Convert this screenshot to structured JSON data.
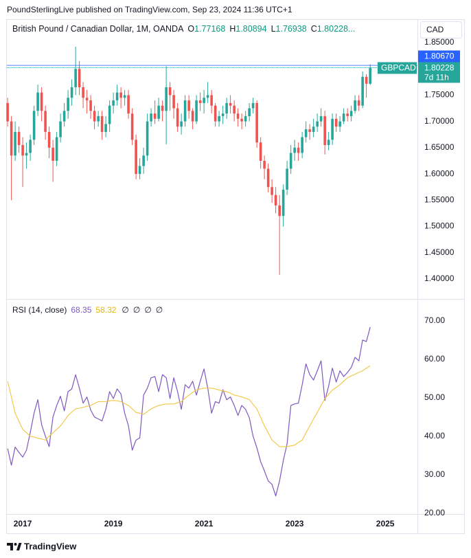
{
  "header": {
    "publisher": "PoundSterlingLive published on TradingView.com, Sep 23, 2024 11:36 UTC+1",
    "brand": "TradingView"
  },
  "chart_data": [
    {
      "type": "candlestick",
      "title": "British Pound / Canadian Dollar, 1M, OANDA",
      "ohlc_labels": [
        "O",
        "H",
        "L",
        "C"
      ],
      "ohlc_more": "...",
      "currency": "CAD",
      "symbol": "GBPCAD",
      "countdown": "7d 11h",
      "price_label": {
        "value": 1.8067,
        "label": "1.80670"
      },
      "price_label_color": "#2962ff",
      "up_color": "#26a69a",
      "down_color": "#ef5350",
      "xlim": [
        2016.65,
        2025.71
      ],
      "ylim": [
        1.362,
        1.8945
      ],
      "yticks": [
        {
          "value": 1.4,
          "label": "1.40000"
        },
        {
          "value": 1.45,
          "label": "1.45000"
        },
        {
          "value": 1.5,
          "label": "1.50000"
        },
        {
          "value": 1.55,
          "label": "1.55000"
        },
        {
          "value": 1.6,
          "label": "1.60000"
        },
        {
          "value": 1.65,
          "label": "1.65000"
        },
        {
          "value": 1.7,
          "label": "1.70000"
        },
        {
          "value": 1.75,
          "label": "1.75000"
        },
        {
          "value": 1.85,
          "label": "1.85000"
        }
      ],
      "grid": true,
      "x": [
        2016.667,
        2016.75,
        2016.833,
        2016.917,
        2017,
        2017.083,
        2017.167,
        2017.25,
        2017.333,
        2017.417,
        2017.5,
        2017.583,
        2017.667,
        2017.75,
        2017.833,
        2017.917,
        2018,
        2018.083,
        2018.167,
        2018.25,
        2018.333,
        2018.417,
        2018.5,
        2018.583,
        2018.667,
        2018.75,
        2018.833,
        2018.917,
        2019,
        2019.083,
        2019.167,
        2019.25,
        2019.333,
        2019.417,
        2019.5,
        2019.583,
        2019.667,
        2019.75,
        2019.833,
        2019.917,
        2020,
        2020.083,
        2020.167,
        2020.25,
        2020.333,
        2020.417,
        2020.5,
        2020.583,
        2020.667,
        2020.75,
        2020.833,
        2020.917,
        2021,
        2021.083,
        2021.167,
        2021.25,
        2021.333,
        2021.417,
        2021.5,
        2021.583,
        2021.667,
        2021.75,
        2021.833,
        2021.917,
        2022,
        2022.083,
        2022.167,
        2022.25,
        2022.333,
        2022.417,
        2022.5,
        2022.583,
        2022.667,
        2022.75,
        2022.833,
        2022.917,
        2023,
        2023.083,
        2023.167,
        2023.25,
        2023.333,
        2023.417,
        2023.5,
        2023.583,
        2023.667,
        2023.75,
        2023.833,
        2023.917,
        2024,
        2024.083,
        2024.167,
        2024.25,
        2024.333,
        2024.417,
        2024.5,
        2024.583,
        2024.667
      ],
      "open": [
        1.735,
        1.7,
        1.635,
        1.68,
        1.655,
        1.635,
        1.64,
        1.665,
        1.72,
        1.755,
        1.72,
        1.68,
        1.65,
        1.625,
        1.67,
        1.7,
        1.72,
        1.745,
        1.765,
        1.8,
        1.765,
        1.745,
        1.74,
        1.72,
        1.7,
        1.71,
        1.68,
        1.695,
        1.73,
        1.74,
        1.755,
        1.745,
        1.75,
        1.715,
        1.665,
        1.6,
        1.615,
        1.635,
        1.7,
        1.715,
        1.705,
        1.73,
        1.72,
        1.765,
        1.75,
        1.725,
        1.69,
        1.7,
        1.74,
        1.72,
        1.7,
        1.74,
        1.735,
        1.745,
        1.75,
        1.73,
        1.7,
        1.71,
        1.715,
        1.735,
        1.73,
        1.715,
        1.705,
        1.7,
        1.71,
        1.725,
        1.735,
        1.66,
        1.625,
        1.61,
        1.575,
        1.56,
        1.54,
        1.52,
        1.57,
        1.61,
        1.64,
        1.65,
        1.64,
        1.67,
        1.685,
        1.68,
        1.69,
        1.7,
        1.71,
        1.655,
        1.665,
        1.705,
        1.69,
        1.7,
        1.715,
        1.71,
        1.72,
        1.74,
        1.73,
        1.785,
        1.77168
      ],
      "high": [
        1.745,
        1.71,
        1.7,
        1.69,
        1.67,
        1.66,
        1.675,
        1.73,
        1.77,
        1.765,
        1.73,
        1.69,
        1.665,
        1.68,
        1.715,
        1.735,
        1.76,
        1.78,
        1.842,
        1.815,
        1.775,
        1.76,
        1.75,
        1.73,
        1.72,
        1.72,
        1.71,
        1.74,
        1.755,
        1.77,
        1.765,
        1.76,
        1.76,
        1.725,
        1.675,
        1.63,
        1.65,
        1.715,
        1.725,
        1.74,
        1.745,
        1.74,
        1.805,
        1.775,
        1.76,
        1.735,
        1.715,
        1.75,
        1.75,
        1.725,
        1.75,
        1.755,
        1.76,
        1.775,
        1.76,
        1.735,
        1.72,
        1.73,
        1.745,
        1.75,
        1.74,
        1.725,
        1.715,
        1.72,
        1.735,
        1.745,
        1.74,
        1.67,
        1.635,
        1.62,
        1.59,
        1.575,
        1.56,
        1.58,
        1.625,
        1.655,
        1.665,
        1.66,
        1.68,
        1.7,
        1.695,
        1.705,
        1.715,
        1.725,
        1.72,
        1.68,
        1.715,
        1.715,
        1.71,
        1.725,
        1.725,
        1.73,
        1.75,
        1.75,
        1.795,
        1.79,
        1.80894
      ],
      "low": [
        1.69,
        1.55,
        1.625,
        1.64,
        1.575,
        1.61,
        1.625,
        1.655,
        1.71,
        1.7,
        1.665,
        1.63,
        1.585,
        1.615,
        1.66,
        1.69,
        1.705,
        1.73,
        1.75,
        1.75,
        1.725,
        1.715,
        1.705,
        1.685,
        1.69,
        1.665,
        1.67,
        1.68,
        1.715,
        1.73,
        1.725,
        1.73,
        1.705,
        1.655,
        1.59,
        1.59,
        1.6,
        1.625,
        1.69,
        1.695,
        1.7,
        1.7,
        1.656,
        1.72,
        1.705,
        1.68,
        1.675,
        1.69,
        1.705,
        1.685,
        1.695,
        1.72,
        1.715,
        1.735,
        1.715,
        1.69,
        1.69,
        1.695,
        1.705,
        1.715,
        1.7,
        1.69,
        1.685,
        1.69,
        1.7,
        1.715,
        1.65,
        1.61,
        1.59,
        1.565,
        1.545,
        1.525,
        1.408,
        1.5,
        1.56,
        1.6,
        1.625,
        1.625,
        1.63,
        1.66,
        1.665,
        1.67,
        1.68,
        1.69,
        1.637,
        1.645,
        1.655,
        1.68,
        1.68,
        1.695,
        1.7,
        1.7,
        1.715,
        1.72,
        1.725,
        1.745,
        1.76938
      ],
      "close": [
        1.7,
        1.635,
        1.68,
        1.655,
        1.635,
        1.64,
        1.665,
        1.72,
        1.755,
        1.72,
        1.68,
        1.65,
        1.625,
        1.67,
        1.7,
        1.72,
        1.745,
        1.765,
        1.8,
        1.765,
        1.745,
        1.74,
        1.72,
        1.7,
        1.71,
        1.68,
        1.695,
        1.73,
        1.74,
        1.755,
        1.745,
        1.75,
        1.715,
        1.665,
        1.6,
        1.615,
        1.635,
        1.7,
        1.715,
        1.705,
        1.73,
        1.72,
        1.765,
        1.75,
        1.725,
        1.69,
        1.7,
        1.74,
        1.72,
        1.7,
        1.74,
        1.735,
        1.745,
        1.75,
        1.73,
        1.7,
        1.71,
        1.715,
        1.735,
        1.73,
        1.715,
        1.705,
        1.7,
        1.71,
        1.725,
        1.735,
        1.66,
        1.625,
        1.61,
        1.575,
        1.56,
        1.54,
        1.52,
        1.57,
        1.61,
        1.64,
        1.65,
        1.64,
        1.67,
        1.685,
        1.68,
        1.69,
        1.7,
        1.71,
        1.655,
        1.665,
        1.705,
        1.69,
        1.7,
        1.715,
        1.71,
        1.72,
        1.74,
        1.73,
        1.785,
        1.77168,
        1.80228
      ]
    },
    {
      "type": "line",
      "title": "RSI (14, close)",
      "extras": [
        "∅",
        "∅",
        "∅",
        "∅"
      ],
      "ylim": [
        19.8,
        75.5
      ],
      "yticks": [
        {
          "value": 20,
          "label": "20.00"
        },
        {
          "value": 30,
          "label": "30.00"
        },
        {
          "value": 40,
          "label": "40.00"
        },
        {
          "value": 50,
          "label": "50.00"
        },
        {
          "value": 60,
          "label": "60.00"
        },
        {
          "value": 70,
          "label": "70.00"
        }
      ],
      "xticks": [
        2017,
        2019,
        2021,
        2023,
        2025
      ],
      "band": [
        30,
        70
      ],
      "band_color": "#7e57c2",
      "levels": [
        70,
        50,
        30
      ],
      "series": [
        {
          "color": "#7e57c2",
          "values": [
            36.8,
            32.5,
            37.2,
            35.8,
            34.6,
            36.4,
            41,
            46,
            49.5,
            43,
            40,
            37.3,
            45,
            48,
            50.4,
            46.6,
            51.6,
            52.3,
            56,
            52.5,
            48.6,
            50.2,
            46.8,
            45,
            44.5,
            44,
            47,
            51.6,
            49.8,
            52.3,
            51,
            46,
            42.7,
            36.4,
            39,
            39.6,
            50.7,
            52.5,
            55.2,
            55.5,
            51.6,
            56,
            55.2,
            49.8,
            55.2,
            51.6,
            47,
            53.4,
            52.5,
            54.3,
            50.7,
            54.3,
            57.5,
            52.5,
            46,
            49,
            48.6,
            52.1,
            49.5,
            50.2,
            48,
            45.4,
            48,
            47,
            44.8,
            40,
            37,
            33.4,
            31,
            28.4,
            27.5,
            24.5,
            28.4,
            33.7,
            38,
            48,
            48.4,
            48.6,
            53.4,
            58.8,
            56,
            54.6,
            57,
            59.6,
            49.3,
            53,
            57.7,
            54.1,
            57,
            55.5,
            56.6,
            57.9,
            60.5,
            59.6,
            65,
            64.6,
            68.35
          ]
        },
        {
          "color": "#f2c94c",
          "values": [
            54.3,
            50.2,
            46,
            43.9,
            41.8,
            40.9,
            40,
            39.8,
            39.5,
            39.3,
            39,
            40,
            40.9,
            41.8,
            42.7,
            44,
            45.4,
            46.3,
            47.1,
            47.3,
            47.5,
            47.8,
            48,
            48.5,
            49,
            49,
            49,
            49.2,
            49.3,
            49.2,
            49,
            48.5,
            48,
            47.1,
            46.2,
            46,
            45.7,
            46.4,
            47.1,
            47.6,
            48,
            48.2,
            48.4,
            48.4,
            48.4,
            48.7,
            49,
            49.9,
            50.7,
            51.4,
            52,
            52.3,
            52.5,
            52.5,
            52.5,
            52.3,
            52,
            51.8,
            51.6,
            51.2,
            50.7,
            50.5,
            50.2,
            49.9,
            49.5,
            48.3,
            47.1,
            44.9,
            42.7,
            40.9,
            39,
            38.2,
            37.3,
            37.3,
            37.3,
            37.5,
            37.7,
            38.4,
            39,
            40.9,
            42.7,
            44.5,
            46.2,
            48,
            49.8,
            50.9,
            52,
            52.7,
            53.4,
            54.3,
            55.2,
            55.7,
            56.1,
            56.6,
            57,
            57.7,
            58.32
          ]
        }
      ]
    }
  ]
}
